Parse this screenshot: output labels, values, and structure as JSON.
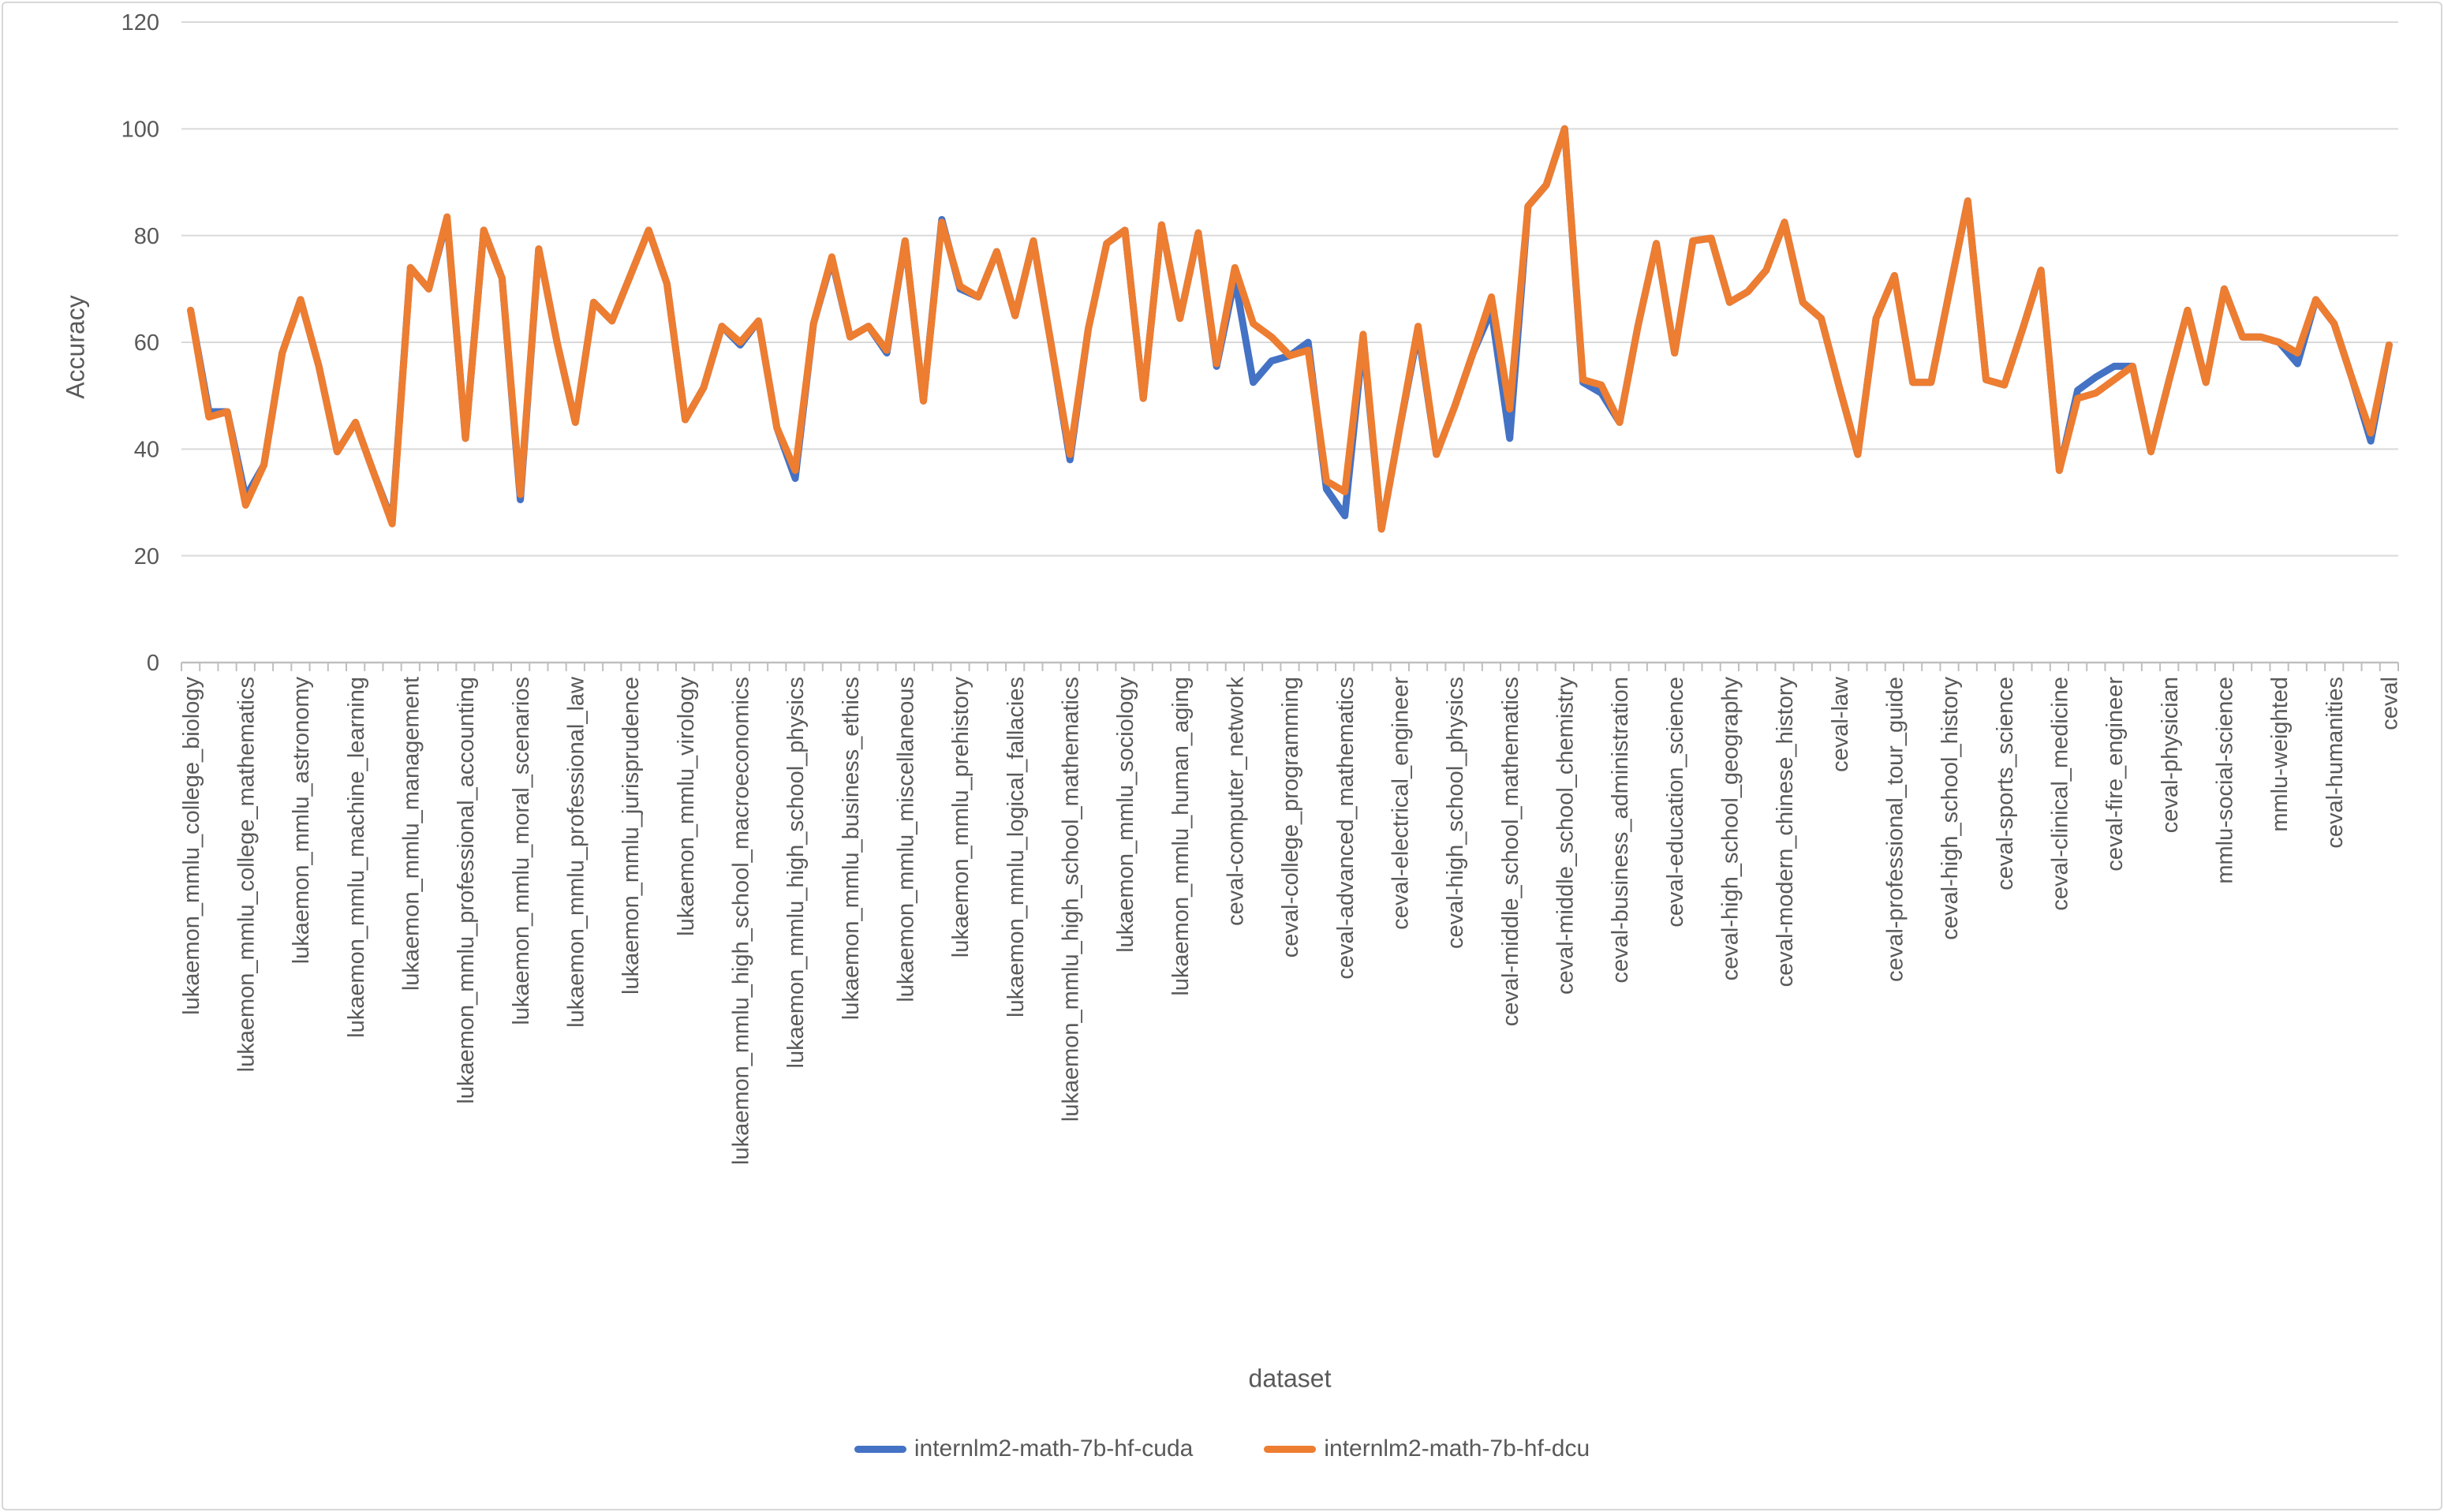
{
  "chart_data": {
    "type": "line",
    "title": "",
    "xlabel": "dataset",
    "ylabel": "Accuracy",
    "ylim": [
      0,
      120
    ],
    "yticks": [
      0,
      20,
      40,
      60,
      80,
      100,
      120
    ],
    "grid": true,
    "legend_position": "bottom",
    "num_points": 121,
    "x_labels_every": 3,
    "x_labels": [
      "lukaemon_mmlu_college_biology",
      "lukaemon_mmlu_college_mathematics",
      "lukaemon_mmlu_astronomy",
      "lukaemon_mmlu_machine_learning",
      "lukaemon_mmlu_management",
      "lukaemon_mmlu_professional_accounting",
      "lukaemon_mmlu_moral_scenarios",
      "lukaemon_mmlu_professional_law",
      "lukaemon_mmlu_jurisprudence",
      "lukaemon_mmlu_virology",
      "lukaemon_mmlu_high_school_macroeconomics",
      "lukaemon_mmlu_high_school_physics",
      "lukaemon_mmlu_business_ethics",
      "lukaemon_mmlu_miscellaneous",
      "lukaemon_mmlu_prehistory",
      "lukaemon_mmlu_logical_fallacies",
      "lukaemon_mmlu_high_school_mathematics",
      "lukaemon_mmlu_sociology",
      "lukaemon_mmlu_human_aging",
      "ceval-computer_network",
      "ceval-college_programming",
      "ceval-advanced_mathematics",
      "ceval-electrical_engineer",
      "ceval-high_school_physics",
      "ceval-middle_school_mathematics",
      "ceval-middle_school_chemistry",
      "ceval-business_administration",
      "ceval-education_science",
      "ceval-high_school_geography",
      "ceval-modern_chinese_history",
      "ceval-law",
      "ceval-professional_tour_guide",
      "ceval-high_school_history",
      "ceval-sports_science",
      "ceval-clinical_medicine",
      "ceval-fire_engineer",
      "ceval-physician",
      "mmlu-social-science",
      "mmlu-weighted",
      "ceval-humanities",
      "ceval"
    ],
    "series": [
      {
        "name": "internlm2-math-7b-hf-cuda",
        "color": "#4472C4",
        "values": [
          66,
          47,
          47,
          31,
          37,
          58,
          68,
          55.5,
          39.5,
          45,
          35.5,
          26.5,
          74,
          70,
          83,
          42,
          81,
          72,
          30.5,
          77.5,
          60,
          45,
          67.5,
          64,
          72.5,
          81,
          71,
          45.5,
          51.5,
          63,
          59.5,
          64,
          44,
          34.5,
          63.5,
          75.5,
          61,
          63,
          58,
          79,
          49,
          83,
          70,
          68.5,
          77,
          65,
          79,
          59,
          38,
          62.5,
          78.5,
          81,
          49.5,
          82,
          64.5,
          80.5,
          55.5,
          72,
          52.5,
          56.5,
          57.5,
          60,
          32.5,
          27.5,
          60.5,
          25,
          44,
          62,
          39,
          48,
          58,
          66,
          42,
          85.5,
          89.5,
          100,
          52.5,
          50.5,
          45,
          63,
          78.5,
          58,
          79,
          79.5,
          67.5,
          69.5,
          73.5,
          82.5,
          67.5,
          64.5,
          51.5,
          39,
          64.5,
          72.5,
          52.5,
          52.5,
          69.5,
          86.5,
          53,
          52,
          62.5,
          73.5,
          36,
          51,
          53.5,
          55.5,
          55.5,
          39.5,
          53,
          66,
          52.5,
          70,
          61,
          61,
          60,
          56,
          68,
          63.5,
          53,
          41.5,
          59.5
        ]
      },
      {
        "name": "internlm2-math-7b-hf-dcu",
        "color": "#ED7D31",
        "values": [
          66,
          46,
          47,
          29.5,
          37,
          58,
          68,
          55.5,
          39.5,
          45,
          35.5,
          26,
          74,
          70,
          83.5,
          42,
          81,
          72,
          31.5,
          77.5,
          60,
          45,
          67.5,
          64,
          72.5,
          81,
          71,
          45.5,
          51.5,
          63,
          60,
          64,
          44,
          36,
          63.5,
          76,
          61,
          63,
          58.5,
          79,
          49,
          82.5,
          70.5,
          68.5,
          77,
          65,
          79,
          59,
          39,
          62.5,
          78.5,
          81,
          49.5,
          82,
          64.5,
          80.5,
          56,
          74,
          63.5,
          61,
          57.5,
          58.5,
          34,
          32,
          61.5,
          25,
          44,
          63,
          39,
          48,
          58,
          68.5,
          47.5,
          85.5,
          89.5,
          100,
          53,
          52,
          45,
          63,
          78.5,
          58,
          79,
          79.5,
          67.5,
          69.5,
          73.5,
          82.5,
          67.5,
          64.5,
          51.5,
          39,
          64.5,
          72.5,
          52.5,
          52.5,
          69.5,
          86.5,
          53,
          52,
          62.5,
          73.5,
          36,
          49.5,
          50.5,
          53,
          55.5,
          39.5,
          53,
          66,
          52.5,
          70,
          61,
          61,
          60,
          58,
          68,
          63.5,
          53,
          43,
          59.5
        ]
      }
    ],
    "colors": {
      "gridline": "#D9D9D9",
      "axis": "#BFBFBF",
      "text": "#595959"
    }
  }
}
